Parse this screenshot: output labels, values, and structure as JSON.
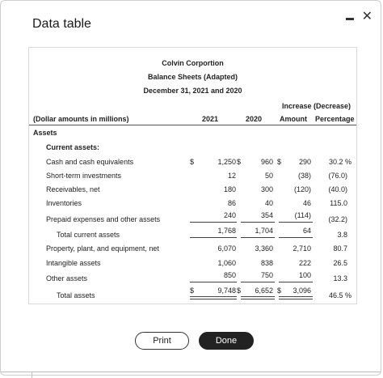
{
  "dialog": {
    "title": "Data table"
  },
  "report": {
    "company": "Colvin Corportion",
    "statement": "Balance Sheets (Adapted)",
    "date": "December 31, 2021 and 2020",
    "increase_header": "Increase (Decrease)",
    "units_label": "(Dollar amounts in millions)",
    "col_2021": "2021",
    "col_2020": "2020",
    "col_amount": "Amount",
    "col_percentage": "Percentage",
    "section_assets": "Assets",
    "subsection_current": "Current assets:",
    "rows": [
      {
        "label": "Cash and cash equivalents",
        "d1": "$",
        "v2021": "1,250",
        "d2": "$",
        "v2020": "960",
        "d3": "$",
        "amount": "290",
        "pct": "30.2 %"
      },
      {
        "label": "Short-term investments",
        "d1": "",
        "v2021": "12",
        "d2": "",
        "v2020": "50",
        "d3": "",
        "amount": "(38)",
        "pct": "(76.0)"
      },
      {
        "label": "Receivables, net",
        "d1": "",
        "v2021": "180",
        "d2": "",
        "v2020": "300",
        "d3": "",
        "amount": "(120)",
        "pct": "(40.0)"
      },
      {
        "label": "Inventories",
        "d1": "",
        "v2021": "86",
        "d2": "",
        "v2020": "40",
        "d3": "",
        "amount": "46",
        "pct": "115.0"
      },
      {
        "label": "Prepaid expenses and other assets",
        "d1": "",
        "v2021": "240",
        "d2": "",
        "v2020": "354",
        "d3": "",
        "amount": "(114)",
        "pct": "(32.2)"
      },
      {
        "label": "Total current assets",
        "d1": "",
        "v2021": "1,768",
        "d2": "",
        "v2020": "1,704",
        "d3": "",
        "amount": "64",
        "pct": "3.8"
      },
      {
        "label": "Property, plant, and equipment, net",
        "d1": "",
        "v2021": "6,070",
        "d2": "",
        "v2020": "3,360",
        "d3": "",
        "amount": "2,710",
        "pct": "80.7"
      },
      {
        "label": "Intangible assets",
        "d1": "",
        "v2021": "1,060",
        "d2": "",
        "v2020": "838",
        "d3": "",
        "amount": "222",
        "pct": "26.5"
      },
      {
        "label": "Other assets",
        "d1": "",
        "v2021": "850",
        "d2": "",
        "v2020": "750",
        "d3": "",
        "amount": "100",
        "pct": "13.3"
      },
      {
        "label": "Total assets",
        "d1": "$",
        "v2021": "9,748",
        "d2": "$",
        "v2020": "6,652",
        "d3": "$",
        "amount": "3,096",
        "pct": "46.5 %"
      }
    ]
  },
  "buttons": {
    "print": "Print",
    "done": "Done"
  }
}
